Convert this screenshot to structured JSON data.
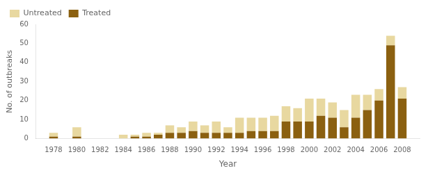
{
  "chart_data": {
    "type": "bar",
    "stacked": true,
    "xlabel": "Year",
    "ylabel": "No. of outbreaks",
    "x": [
      1978,
      1979,
      1980,
      1984,
      1985,
      1986,
      1987,
      1988,
      1989,
      1990,
      1991,
      1992,
      1993,
      1994,
      1995,
      1996,
      1997,
      1998,
      1999,
      2000,
      2001,
      2002,
      2003,
      2004,
      2005,
      2006,
      2007,
      2008
    ],
    "series": [
      {
        "name": "Treated",
        "color": "#8B6010",
        "values": [
          1,
          0,
          1,
          0,
          1,
          1,
          2,
          3,
          3,
          4,
          3,
          3,
          3,
          3,
          4,
          4,
          4,
          9,
          9,
          9,
          12,
          11,
          6,
          11,
          15,
          20,
          49,
          21
        ]
      },
      {
        "name": "Untreated",
        "color": "#E8D8A0",
        "values": [
          2,
          0,
          5,
          2,
          1,
          2,
          1,
          4,
          3,
          5,
          4,
          6,
          3,
          8,
          7,
          7,
          8,
          8,
          7,
          12,
          9,
          8,
          9,
          12,
          8,
          6,
          5,
          6
        ]
      }
    ],
    "xlim": [
      1976.5,
      2009.5
    ],
    "xticks": [
      1978,
      1980,
      1982,
      1984,
      1986,
      1988,
      1990,
      1992,
      1994,
      1996,
      1998,
      2000,
      2002,
      2004,
      2006,
      2008
    ],
    "ylim": [
      0,
      60
    ],
    "yticks": [
      0,
      10,
      20,
      30,
      40,
      50,
      60
    ],
    "grid": false,
    "legend": "upper left"
  }
}
